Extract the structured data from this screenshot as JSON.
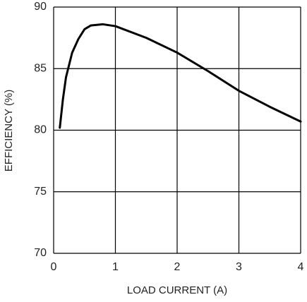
{
  "chart_data": {
    "type": "line",
    "xlabel": "LOAD CURRENT (A)",
    "ylabel": "EFFICIENCY (%)",
    "x": [
      0.1,
      0.15,
      0.2,
      0.3,
      0.4,
      0.5,
      0.6,
      0.8,
      1,
      1.5,
      2,
      2.5,
      3,
      3.5,
      4
    ],
    "values": [
      80.2,
      82.5,
      84.3,
      86.3,
      87.4,
      88.2,
      88.5,
      88.6,
      88.45,
      87.5,
      86.3,
      84.8,
      83.2,
      81.9,
      80.7
    ],
    "color": "#000000",
    "xlim": [
      0,
      4
    ],
    "xticks": [
      0,
      1,
      2,
      3,
      4
    ],
    "ylim": [
      70,
      90
    ],
    "yticks": [
      70,
      75,
      80,
      85,
      90
    ],
    "grid": true
  }
}
